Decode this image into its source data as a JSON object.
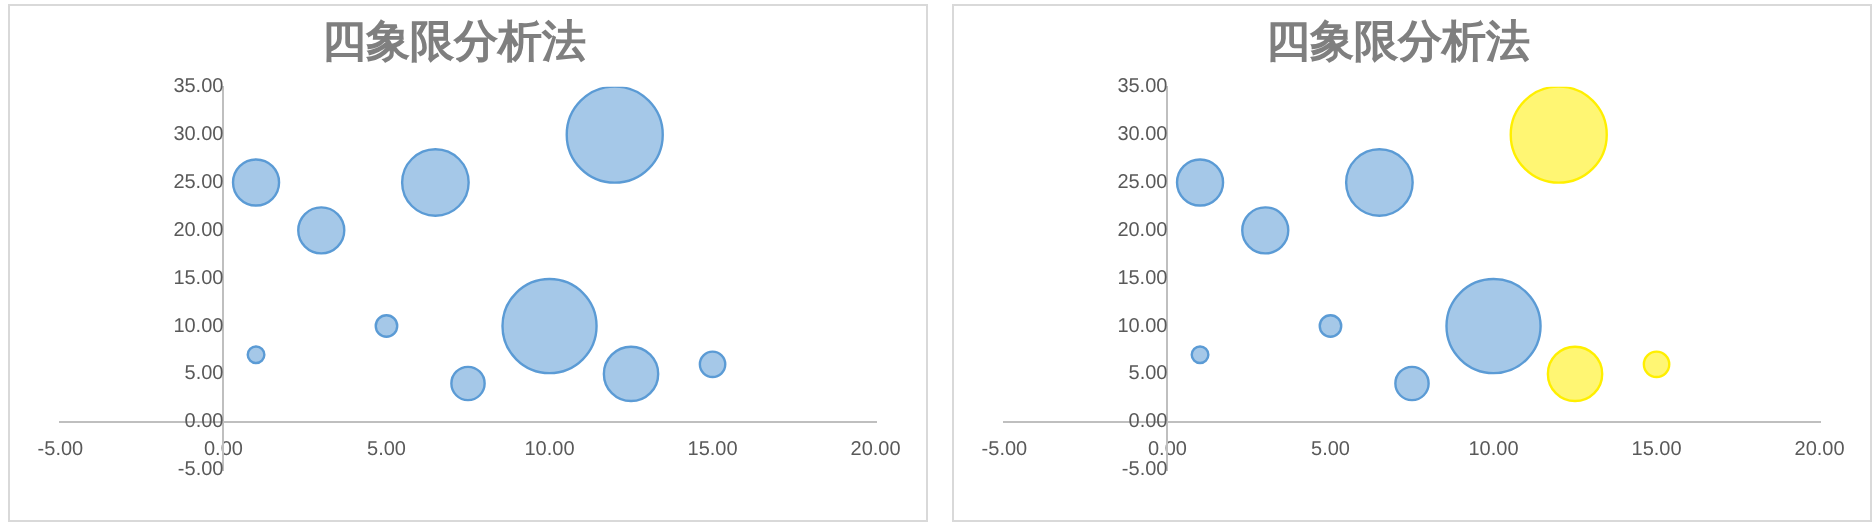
{
  "chart_data": [
    {
      "type": "bubble",
      "title": "四象限分析法",
      "x": [
        1,
        3,
        6.5,
        12,
        1,
        5,
        7.5,
        10,
        12.5,
        15
      ],
      "values": [
        25,
        20,
        25,
        30,
        7,
        10,
        4,
        10,
        5,
        6
      ],
      "sizes": [
        0.23,
        0.23,
        0.48,
        1,
        0.03,
        0.05,
        0.12,
        0.96,
        0.32,
        0.07
      ],
      "color": "#5b9bd5",
      "xlim": [
        -5,
        20
      ],
      "xticks": [
        {
          "value": -5,
          "label": "-5.00"
        },
        {
          "value": 0,
          "label": "0.00"
        },
        {
          "value": 5,
          "label": "5.00"
        },
        {
          "value": 10,
          "label": "10.00"
        },
        {
          "value": 15,
          "label": "15.00"
        },
        {
          "value": 20,
          "label": "20.00"
        }
      ],
      "ylim": [
        -5,
        35
      ],
      "yticks": [
        {
          "value": -5,
          "label": "-5.00"
        },
        {
          "value": 0,
          "label": "0.00"
        },
        {
          "value": 5,
          "label": "5.00"
        },
        {
          "value": 10,
          "label": "10.00"
        },
        {
          "value": 15,
          "label": "15.00"
        },
        {
          "value": 20,
          "label": "20.00"
        },
        {
          "value": 25,
          "label": "25.00"
        },
        {
          "value": 30,
          "label": "30.00"
        },
        {
          "value": 35,
          "label": "35.00"
        }
      ],
      "grid": false,
      "legend": false
    },
    {
      "type": "bubble",
      "title": "四象限分析法",
      "x": [
        1,
        3,
        6.5,
        12,
        1,
        5,
        7.5,
        10,
        12.5,
        15
      ],
      "values": [
        25,
        20,
        25,
        30,
        7,
        10,
        4,
        10,
        5,
        6
      ],
      "sizes": [
        0.23,
        0.23,
        0.48,
        1,
        0.03,
        0.05,
        0.12,
        0.96,
        0.32,
        0.07
      ],
      "colors": [
        "#5b9bd5",
        "#5b9bd5",
        "#5b9bd5",
        "#ffef00",
        "#5b9bd5",
        "#5b9bd5",
        "#5b9bd5",
        "#5b9bd5",
        "#ffef00",
        "#ffef00"
      ],
      "xlim": [
        -5,
        20
      ],
      "xticks": [
        {
          "value": -5,
          "label": "-5.00"
        },
        {
          "value": 0,
          "label": "0.00"
        },
        {
          "value": 5,
          "label": "5.00"
        },
        {
          "value": 10,
          "label": "10.00"
        },
        {
          "value": 15,
          "label": "15.00"
        },
        {
          "value": 20,
          "label": "20.00"
        }
      ],
      "ylim": [
        -5,
        35
      ],
      "yticks": [
        {
          "value": -5,
          "label": "-5.00"
        },
        {
          "value": 0,
          "label": "0.00"
        },
        {
          "value": 5,
          "label": "5.00"
        },
        {
          "value": 10,
          "label": "10.00"
        },
        {
          "value": 15,
          "label": "15.00"
        },
        {
          "value": 20,
          "label": "20.00"
        },
        {
          "value": 25,
          "label": "25.00"
        },
        {
          "value": 30,
          "label": "30.00"
        },
        {
          "value": 35,
          "label": "35.00"
        }
      ],
      "grid": false,
      "legend": false
    }
  ]
}
